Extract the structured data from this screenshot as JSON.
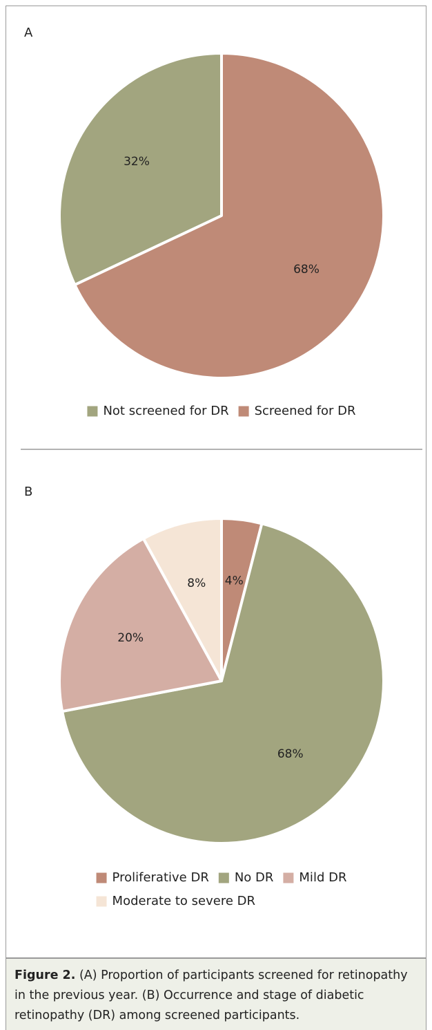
{
  "chart_data": [
    {
      "type": "pie",
      "title": "A",
      "direction": "counterclockwise",
      "categories": [
        "Not screened for DR",
        "Screened for DR"
      ],
      "values": [
        32,
        68
      ],
      "value_labels": [
        "32%",
        "68%"
      ],
      "colors": [
        "#a2a57f",
        "#bf8a77"
      ]
    },
    {
      "type": "pie",
      "title": "B",
      "direction": "clockwise",
      "categories": [
        "Proliferative DR",
        "No DR",
        "Mild DR",
        "Moderate to severe DR"
      ],
      "values": [
        4,
        68,
        20,
        8
      ],
      "value_labels": [
        "4%",
        "68%",
        "20%",
        "8%"
      ],
      "colors": [
        "#bf8a77",
        "#a2a57f",
        "#d4aea4",
        "#f5e5d6"
      ]
    }
  ],
  "caption": {
    "label": "Figure 2.",
    "text": "(A) Proportion of participants screened for retinopathy in the previous year. (B) Occurrence and stage of diabetic retinopathy (DR) among screened participants."
  }
}
